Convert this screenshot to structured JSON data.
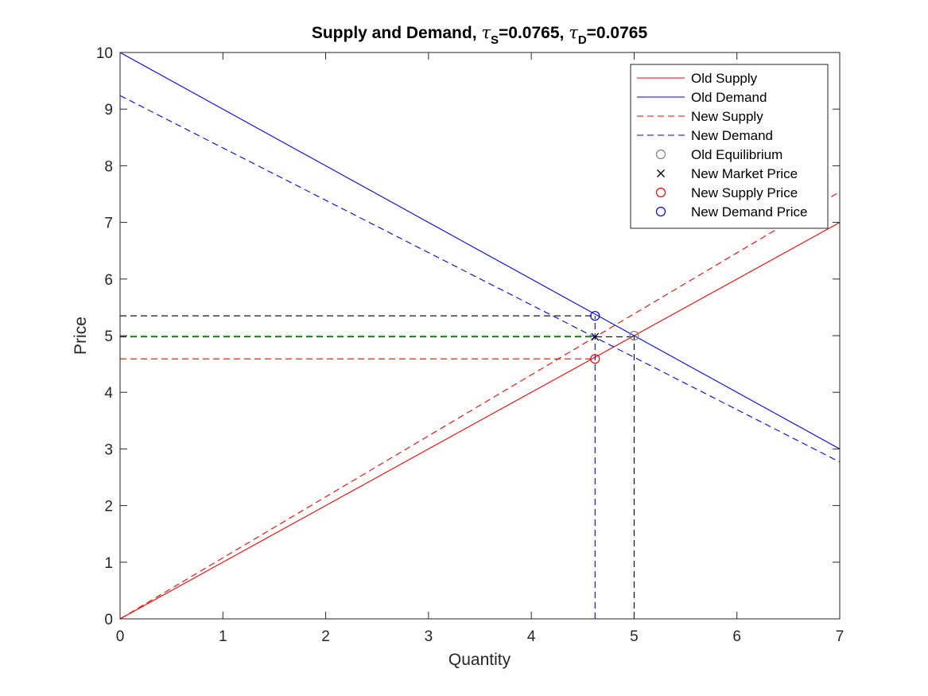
{
  "chart_data": {
    "type": "line",
    "title": {
      "prefix": "Supply and Demand, ",
      "tau_s_sub": "S",
      "tau_s_value": "=0.0765",
      "separator": ", ",
      "tau_d_sub": "D",
      "tau_d_value": "=0.0765",
      "symbol": "τ"
    },
    "xlabel": "Quantity",
    "ylabel": "Price",
    "xlim": [
      0,
      7
    ],
    "ylim": [
      0,
      10
    ],
    "xticks": [
      "0",
      "1",
      "2",
      "3",
      "4",
      "5",
      "6",
      "7"
    ],
    "yticks": [
      "0",
      "1",
      "2",
      "3",
      "4",
      "5",
      "6",
      "7",
      "8",
      "9",
      "10"
    ],
    "grid": false,
    "legend_position": "top-right",
    "series": [
      {
        "name": "Old Supply",
        "style": "solid",
        "color": "#ff0000",
        "x": [
          0,
          7
        ],
        "y": [
          0,
          7
        ]
      },
      {
        "name": "Old Demand",
        "style": "solid",
        "color": "#0000ff",
        "x": [
          0,
          7
        ],
        "y": [
          10,
          3
        ]
      },
      {
        "name": "New Supply",
        "style": "dashed",
        "color": "#ff0000",
        "x": [
          0,
          7
        ],
        "y": [
          0,
          7.54
        ]
      },
      {
        "name": "New Demand",
        "style": "dashed",
        "color": "#0000ff",
        "x": [
          0,
          7
        ],
        "y": [
          9.24,
          2.77
        ]
      }
    ],
    "markers": [
      {
        "name": "Old Equilibrium",
        "symbol": "circle",
        "color": "#808080",
        "x": 5.0,
        "y": 5.0
      },
      {
        "name": "New Market Price",
        "symbol": "x",
        "color": "#000000",
        "x": 4.62,
        "y": 4.98
      },
      {
        "name": "New Supply Price",
        "symbol": "circle",
        "color": "#ff0000",
        "x": 4.62,
        "y": 4.59
      },
      {
        "name": "New Demand Price",
        "symbol": "circle",
        "color": "#0000ff",
        "x": 4.62,
        "y": 5.35
      }
    ],
    "guide_lines": [
      {
        "color": "#000000",
        "x": [
          0,
          4.62
        ],
        "y": [
          5.35,
          5.35
        ]
      },
      {
        "color": "#00ff00",
        "x": [
          0,
          4.62
        ],
        "y": [
          5.0,
          5.0
        ]
      },
      {
        "color": "#000000",
        "x": [
          0,
          5.0
        ],
        "y": [
          4.98,
          4.98
        ]
      },
      {
        "color": "#ff0000",
        "x": [
          0,
          4.62
        ],
        "y": [
          4.59,
          4.59
        ]
      },
      {
        "color": "#0000ff",
        "x": [
          4.62,
          4.62
        ],
        "y": [
          0,
          5.35
        ]
      },
      {
        "color": "#000000",
        "x": [
          5.0,
          5.0
        ],
        "y": [
          0,
          5.0
        ]
      }
    ]
  }
}
